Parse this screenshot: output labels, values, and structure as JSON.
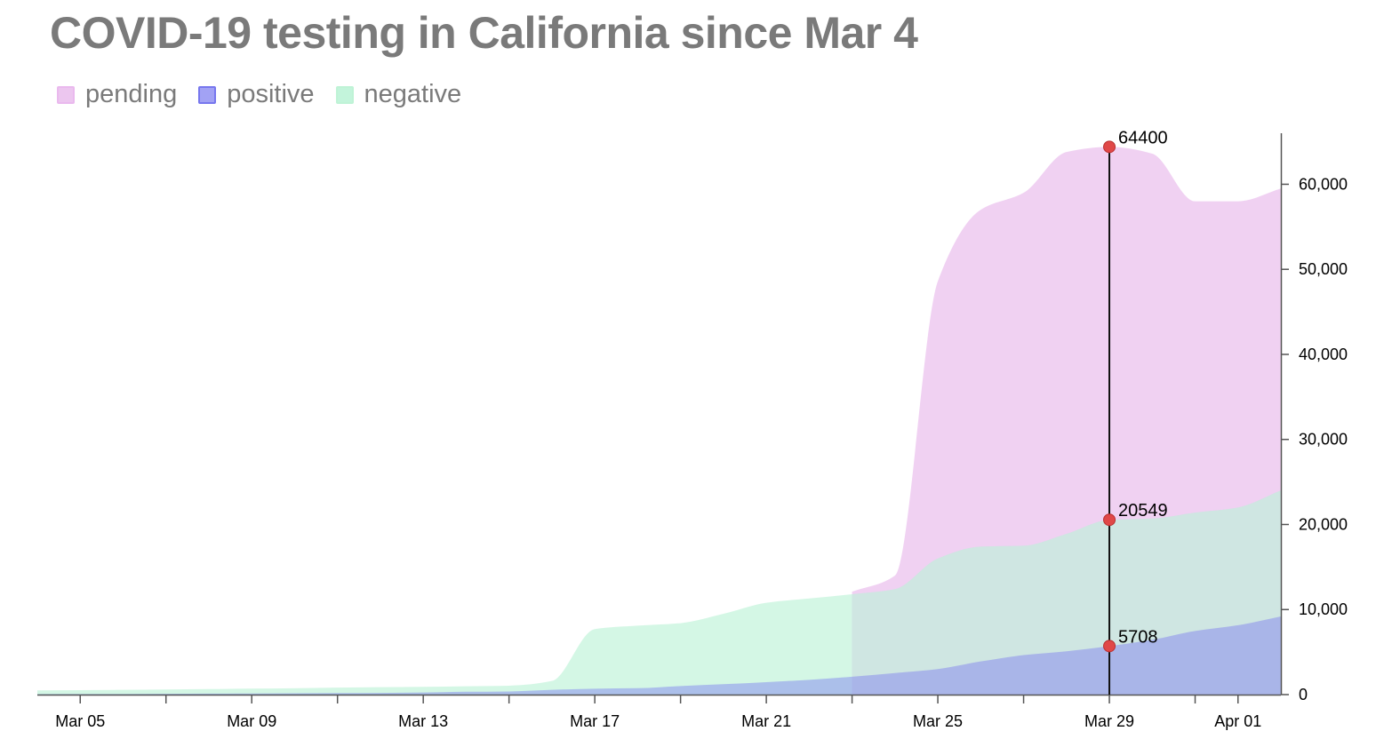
{
  "chart_data": {
    "type": "area",
    "title": "COVID-19 testing in California since Mar 4",
    "x": [
      "2020-03-04",
      "2020-03-05",
      "2020-03-06",
      "2020-03-07",
      "2020-03-08",
      "2020-03-09",
      "2020-03-10",
      "2020-03-11",
      "2020-03-12",
      "2020-03-13",
      "2020-03-14",
      "2020-03-15",
      "2020-03-16",
      "2020-03-17",
      "2020-03-18",
      "2020-03-19",
      "2020-03-20",
      "2020-03-21",
      "2020-03-22",
      "2020-03-23",
      "2020-03-24",
      "2020-03-25",
      "2020-03-26",
      "2020-03-27",
      "2020-03-28",
      "2020-03-29",
      "2020-03-30",
      "2020-03-31",
      "2020-04-01",
      "2020-04-02"
    ],
    "series": [
      {
        "name": "pending",
        "color": "#e6b3ea",
        "values": [
          null,
          null,
          null,
          null,
          null,
          null,
          null,
          null,
          null,
          null,
          null,
          null,
          null,
          null,
          null,
          null,
          null,
          null,
          null,
          12100,
          14000,
          48600,
          57000,
          59000,
          63800,
          64400,
          63600,
          58000,
          58000,
          59500
        ]
      },
      {
        "name": "positive",
        "color": "#7b7bf0",
        "values": [
          53,
          60,
          69,
          88,
          114,
          133,
          157,
          177,
          198,
          247,
          335,
          372,
          557,
          698,
          751,
          1006,
          1224,
          1468,
          1733,
          2102,
          2535,
          3006,
          3899,
          4643,
          5095,
          5708,
          6447,
          7482,
          8155,
          9191
        ]
      },
      {
        "name": "negative",
        "color": "#aaf0cc",
        "values": [
          500,
          520,
          560,
          600,
          650,
          700,
          750,
          820,
          880,
          920,
          980,
          1050,
          1600,
          7700,
          8100,
          8400,
          9500,
          10800,
          11300,
          11800,
          12400,
          16000,
          17400,
          17500,
          18900,
          20549,
          20700,
          21400,
          22000,
          24000
        ]
      }
    ],
    "pending_start": "2020-03-23",
    "highlight": {
      "x": "2020-03-29",
      "labels": [
        {
          "series": "pending",
          "value": "64400"
        },
        {
          "series": "negative",
          "value": "20549"
        },
        {
          "series": "positive",
          "value": "5708"
        }
      ]
    },
    "x_ticks": [
      {
        "date": "2020-03-05",
        "label": "Mar 05"
      },
      {
        "date": "2020-03-07",
        "label": ""
      },
      {
        "date": "2020-03-09",
        "label": "Mar 09"
      },
      {
        "date": "2020-03-11",
        "label": ""
      },
      {
        "date": "2020-03-13",
        "label": "Mar 13"
      },
      {
        "date": "2020-03-15",
        "label": ""
      },
      {
        "date": "2020-03-17",
        "label": "Mar 17"
      },
      {
        "date": "2020-03-19",
        "label": ""
      },
      {
        "date": "2020-03-21",
        "label": "Mar 21"
      },
      {
        "date": "2020-03-23",
        "label": ""
      },
      {
        "date": "2020-03-25",
        "label": "Mar 25"
      },
      {
        "date": "2020-03-27",
        "label": ""
      },
      {
        "date": "2020-03-29",
        "label": "Mar 29"
      },
      {
        "date": "2020-03-31",
        "label": ""
      },
      {
        "date": "2020-04-01",
        "label": "Apr 01"
      }
    ],
    "y_ticks": [
      {
        "value": 0,
        "label": "0"
      },
      {
        "value": 10000,
        "label": "10,000"
      },
      {
        "value": 20000,
        "label": "20,000"
      },
      {
        "value": 30000,
        "label": "30,000"
      },
      {
        "value": 40000,
        "label": "40,000"
      },
      {
        "value": 50000,
        "label": "50,000"
      },
      {
        "value": 60000,
        "label": "60,000"
      }
    ],
    "xlim": [
      "2020-03-04",
      "2020-04-02"
    ],
    "ylim": [
      0,
      66000
    ],
    "y_axis_side": "right",
    "legend_position": "top-left",
    "grid": false,
    "marker_color": "#e04848"
  }
}
